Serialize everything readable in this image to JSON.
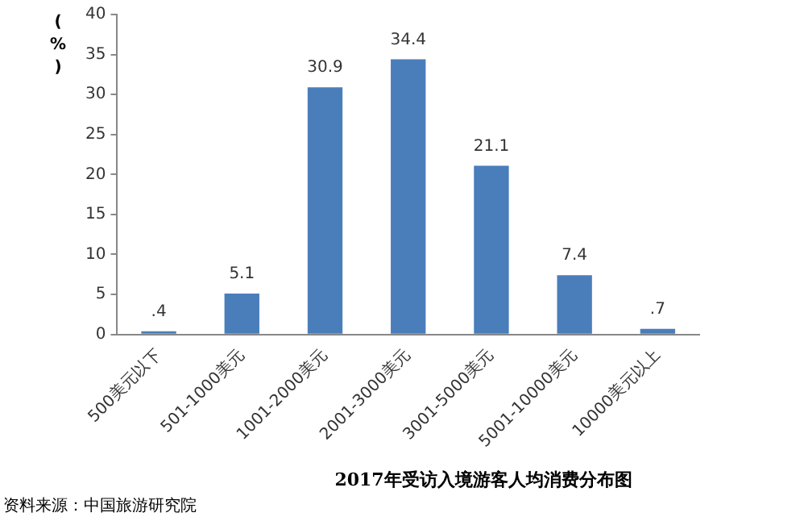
{
  "chart_data": {
    "type": "bar",
    "title": "2017年受访入境游客人均消费分布图",
    "ylabel": "(%)",
    "categories": [
      "500美元以下",
      "501-1000美元",
      "1001-2000美元",
      "2001-3000美元",
      "3001-5000美元",
      "5001-10000美元",
      "10000美元以上"
    ],
    "values": [
      0.4,
      5.1,
      30.9,
      34.4,
      21.1,
      7.4,
      0.7
    ],
    "value_labels": [
      ".4",
      "5.1",
      "30.9",
      "34.4",
      "21.1",
      "7.4",
      ".7"
    ],
    "color": "#4a7ebb",
    "ylim": [
      0,
      40
    ],
    "yticks": [
      0,
      5,
      10,
      15,
      20,
      25,
      30,
      35,
      40
    ],
    "grid": false,
    "annotations": [
      "资料来源：中国旅游研究院"
    ]
  }
}
